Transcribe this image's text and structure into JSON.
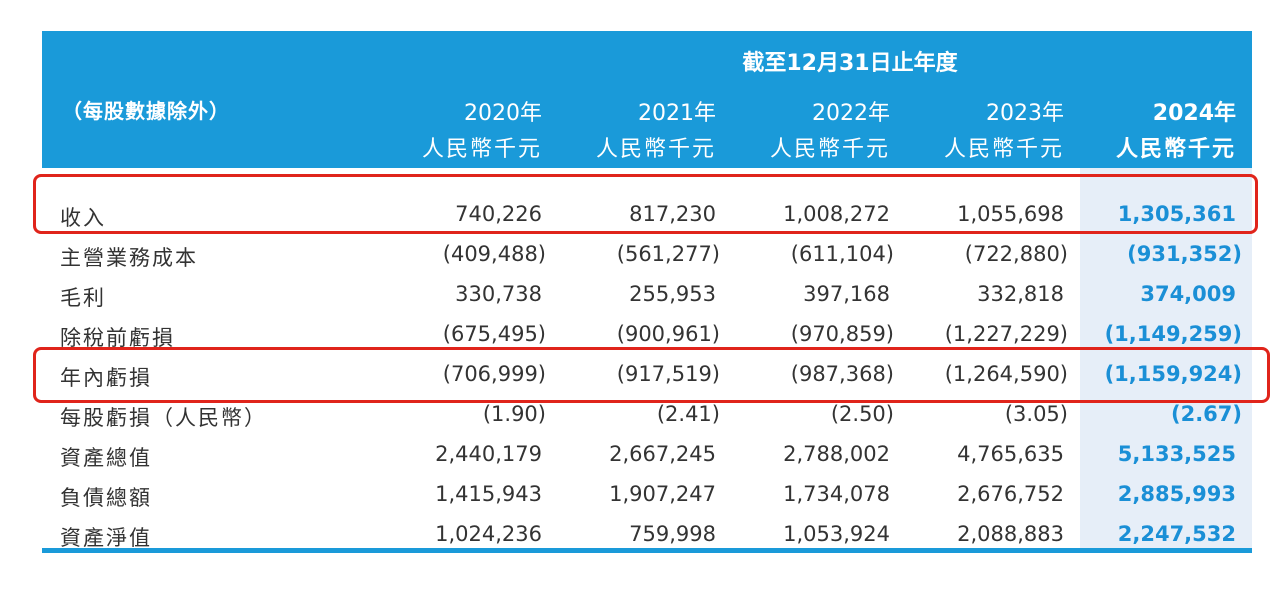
{
  "header": {
    "period": "截至12月31日止年度",
    "note": "（每股數據除外）",
    "columns": [
      {
        "year": "2020年",
        "unit": "人民幣千元"
      },
      {
        "year": "2021年",
        "unit": "人民幣千元"
      },
      {
        "year": "2022年",
        "unit": "人民幣千元"
      },
      {
        "year": "2023年",
        "unit": "人民幣千元"
      },
      {
        "year": "2024年",
        "unit": "人民幣千元"
      }
    ]
  },
  "rows": [
    {
      "label": "收入",
      "values": [
        "740,226",
        "817,230",
        "1,008,272",
        "1,055,698",
        "1,305,361"
      ]
    },
    {
      "label": "主營業務成本",
      "values": [
        "(409,488)",
        "(561,277)",
        "(611,104)",
        "(722,880)",
        "(931,352)"
      ]
    },
    {
      "label": "毛利",
      "values": [
        "330,738",
        "255,953",
        "397,168",
        "332,818",
        "374,009"
      ]
    },
    {
      "label": "除稅前虧損",
      "values": [
        "(675,495)",
        "(900,961)",
        "(970,859)",
        "(1,227,229)",
        "(1,149,259)"
      ]
    },
    {
      "label": "年內虧損",
      "values": [
        "(706,999)",
        "(917,519)",
        "(987,368)",
        "(1,264,590)",
        "(1,159,924)"
      ]
    },
    {
      "label": "每股虧損（人民幣）",
      "values": [
        "(1.90)",
        "(2.41)",
        "(2.50)",
        "(3.05)",
        "(2.67)"
      ]
    },
    {
      "label": "資產總值",
      "values": [
        "2,440,179",
        "2,667,245",
        "2,788,002",
        "4,765,635",
        "5,133,525"
      ]
    },
    {
      "label": "負債總額",
      "values": [
        "1,415,943",
        "1,907,247",
        "1,734,078",
        "2,676,752",
        "2,885,993"
      ]
    },
    {
      "label": "資產淨值",
      "values": [
        "1,024,236",
        "759,998",
        "1,053,924",
        "2,088,883",
        "2,247,532"
      ]
    }
  ],
  "colors": {
    "header": "#1a9ad9",
    "highlight": "#1a8fd6",
    "box": "#e0241b"
  }
}
